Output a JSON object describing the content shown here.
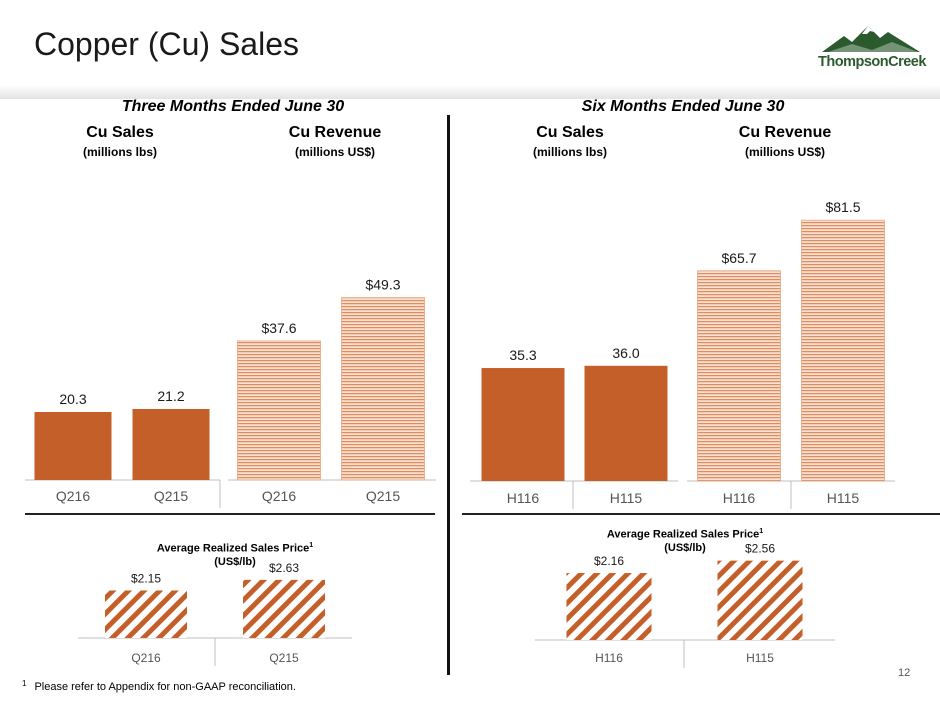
{
  "page": {
    "title": "Copper (Cu) Sales",
    "logo_text": "ThompsonCreek",
    "page_number": "12",
    "footnote_marker": "1",
    "footnote": "Please refer to Appendix for non-GAAP reconciliation."
  },
  "sections": {
    "three_months": "Three Months Ended June 30",
    "six_months": "Six Months Ended June 30"
  },
  "colors": {
    "copper": "#c55f2a",
    "copper_light": "#e8a580",
    "stripe_bg": "#f6d6c2"
  },
  "chart_data": [
    {
      "id": "q-sales",
      "type": "bar",
      "title": "Cu Sales",
      "subtitle": "(millions lbs)",
      "categories": [
        "Q216",
        "Q215"
      ],
      "values": [
        20.3,
        21.2
      ],
      "value_labels": [
        "20.3",
        "21.2"
      ],
      "style": "solid"
    },
    {
      "id": "q-revenue",
      "type": "bar",
      "title": "Cu Revenue",
      "subtitle": "(millions US$)",
      "categories": [
        "Q216",
        "Q215"
      ],
      "values": [
        37.6,
        49.3
      ],
      "value_labels": [
        "$37.6",
        "$49.3"
      ],
      "style": "hstripe"
    },
    {
      "id": "h-sales",
      "type": "bar",
      "title": "Cu Sales",
      "subtitle": "(millions lbs)",
      "categories": [
        "H116",
        "H115"
      ],
      "values": [
        35.3,
        36.0
      ],
      "value_labels": [
        "35.3",
        "36.0"
      ],
      "style": "solid"
    },
    {
      "id": "h-revenue",
      "type": "bar",
      "title": "Cu Revenue",
      "subtitle": "(millions US$)",
      "categories": [
        "H116",
        "H115"
      ],
      "values": [
        65.7,
        81.5
      ],
      "value_labels": [
        "$65.7",
        "$81.5"
      ],
      "style": "hstripe"
    },
    {
      "id": "q-price",
      "type": "bar",
      "title": "Average Realized Sales Price",
      "title_sup": "1",
      "subtitle": "(US$/lb)",
      "categories": [
        "Q216",
        "Q215"
      ],
      "values": [
        2.15,
        2.63
      ],
      "value_labels": [
        "$2.15",
        "$2.63"
      ],
      "style": "diag"
    },
    {
      "id": "h-price",
      "type": "bar",
      "title": "Average  Realized Sales Price",
      "title_sup": "1",
      "subtitle": "(US$/lb)",
      "categories": [
        "H116",
        "H115"
      ],
      "values": [
        2.16,
        2.56
      ],
      "value_labels": [
        "$2.16",
        "$2.56"
      ],
      "style": "diag"
    }
  ]
}
